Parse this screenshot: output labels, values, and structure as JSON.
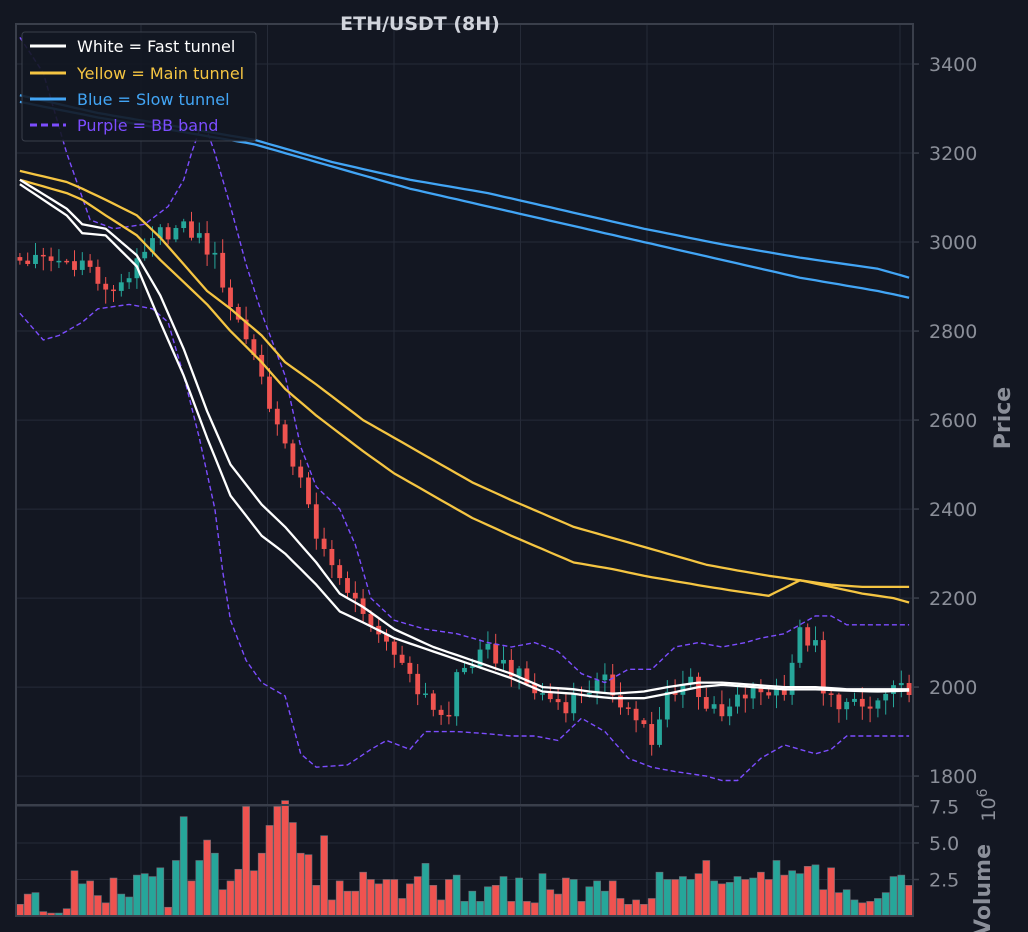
{
  "chart_data": {
    "type": "candlestick",
    "title": "ETH/USDT (8H)",
    "colors": {
      "background": "#131722",
      "grid": "#262b38",
      "axis": "#3a3f4b",
      "tick_text": "#8b8f99",
      "title_text": "#d1d4dc",
      "up": "#26a69a",
      "down": "#ef5350",
      "fast": "#ffffff",
      "main": "#f5c542",
      "slow": "#42a5f5",
      "bb": "#7c4dff"
    },
    "price_panel": {
      "ylabel": "Price",
      "ylim": [
        1735,
        3490
      ],
      "yticks": [
        "1800",
        "2000",
        "2200",
        "2400",
        "2600",
        "2800",
        "3000",
        "3200",
        "3400"
      ],
      "candle_count": 115
    },
    "volume_panel": {
      "ylabel": "Volume",
      "exponent": "6",
      "ylim": [
        0,
        7.6
      ],
      "yticks": [
        "2.5",
        "5.0",
        "7.5"
      ]
    },
    "legend": [
      {
        "label": "White = Fast tunnel",
        "color": "#ffffff",
        "style": "solid"
      },
      {
        "label": "Yellow = Main tunnel",
        "color": "#f5c542",
        "style": "solid"
      },
      {
        "label": "Blue = Slow tunnel",
        "color": "#42a5f5",
        "style": "solid"
      },
      {
        "label": "Purple = BB band",
        "color": "#7c4dff",
        "style": "dashed"
      }
    ],
    "close_anchors": [
      [
        0,
        2960
      ],
      [
        8,
        2955
      ],
      [
        9,
        2940
      ],
      [
        11,
        2880
      ],
      [
        15,
        2945
      ],
      [
        18,
        3020
      ],
      [
        21,
        3030
      ],
      [
        23,
        3010
      ],
      [
        25,
        2960
      ],
      [
        27,
        2860
      ],
      [
        30,
        2750
      ],
      [
        34,
        2530
      ],
      [
        36,
        2480
      ],
      [
        38,
        2320
      ],
      [
        40,
        2290
      ],
      [
        42,
        2200
      ],
      [
        44,
        2180
      ],
      [
        46,
        2100
      ],
      [
        49,
        2060
      ],
      [
        52,
        1970
      ],
      [
        55,
        1930
      ],
      [
        56,
        2030
      ],
      [
        60,
        2080
      ],
      [
        63,
        2040
      ],
      [
        66,
        1990
      ],
      [
        70,
        1960
      ],
      [
        72,
        1990
      ],
      [
        75,
        2010
      ],
      [
        78,
        1950
      ],
      [
        80,
        1910
      ],
      [
        81,
        1860
      ],
      [
        83,
        1985
      ],
      [
        86,
        2020
      ],
      [
        88,
        1960
      ],
      [
        90,
        1930
      ],
      [
        92,
        1970
      ],
      [
        94,
        1990
      ],
      [
        96,
        1990
      ],
      [
        98,
        2000
      ],
      [
        100,
        2120
      ],
      [
        102,
        2090
      ],
      [
        103,
        1980
      ],
      [
        106,
        1960
      ],
      [
        109,
        1950
      ],
      [
        111,
        1980
      ],
      [
        114,
        2000
      ]
    ],
    "fast_upper": [
      [
        0,
        3140
      ],
      [
        6,
        3075
      ],
      [
        8,
        3040
      ],
      [
        11,
        3030
      ],
      [
        15,
        2970
      ],
      [
        18,
        2880
      ],
      [
        21,
        2760
      ],
      [
        24,
        2620
      ],
      [
        27,
        2500
      ],
      [
        31,
        2410
      ],
      [
        34,
        2360
      ],
      [
        38,
        2280
      ],
      [
        41,
        2210
      ],
      [
        44,
        2180
      ],
      [
        48,
        2130
      ],
      [
        53,
        2090
      ],
      [
        58,
        2060
      ],
      [
        63,
        2030
      ],
      [
        67,
        2000
      ],
      [
        71,
        1995
      ],
      [
        73,
        1990
      ],
      [
        76,
        1985
      ],
      [
        80,
        1990
      ],
      [
        83,
        2000
      ],
      [
        87,
        2010
      ],
      [
        90,
        2010
      ],
      [
        94,
        2005
      ],
      [
        98,
        2000
      ],
      [
        102,
        2000
      ],
      [
        106,
        1995
      ],
      [
        110,
        1995
      ],
      [
        114,
        1995
      ]
    ],
    "fast_lower": [
      [
        0,
        3130
      ],
      [
        6,
        3060
      ],
      [
        8,
        3020
      ],
      [
        11,
        3015
      ],
      [
        15,
        2945
      ],
      [
        18,
        2820
      ],
      [
        21,
        2700
      ],
      [
        24,
        2560
      ],
      [
        27,
        2430
      ],
      [
        31,
        2340
      ],
      [
        34,
        2300
      ],
      [
        38,
        2230
      ],
      [
        41,
        2170
      ],
      [
        44,
        2145
      ],
      [
        48,
        2110
      ],
      [
        53,
        2080
      ],
      [
        58,
        2050
      ],
      [
        63,
        2020
      ],
      [
        67,
        1990
      ],
      [
        71,
        1985
      ],
      [
        73,
        1980
      ],
      [
        76,
        1975
      ],
      [
        80,
        1975
      ],
      [
        83,
        1985
      ],
      [
        87,
        2000
      ],
      [
        90,
        2005
      ],
      [
        94,
        2000
      ],
      [
        98,
        1995
      ],
      [
        102,
        1995
      ],
      [
        106,
        1992
      ],
      [
        110,
        1990
      ],
      [
        114,
        1992
      ]
    ],
    "main_upper": [
      [
        0,
        3160
      ],
      [
        6,
        3135
      ],
      [
        8,
        3120
      ],
      [
        11,
        3095
      ],
      [
        15,
        3060
      ],
      [
        18,
        3010
      ],
      [
        21,
        2950
      ],
      [
        24,
        2890
      ],
      [
        27,
        2850
      ],
      [
        31,
        2790
      ],
      [
        34,
        2730
      ],
      [
        38,
        2680
      ],
      [
        41,
        2640
      ],
      [
        44,
        2600
      ],
      [
        48,
        2560
      ],
      [
        53,
        2510
      ],
      [
        58,
        2460
      ],
      [
        63,
        2420
      ],
      [
        67,
        2390
      ],
      [
        71,
        2360
      ],
      [
        76,
        2335
      ],
      [
        80,
        2315
      ],
      [
        84,
        2295
      ],
      [
        88,
        2275
      ],
      [
        92,
        2262
      ],
      [
        96,
        2250
      ],
      [
        100,
        2240
      ],
      [
        104,
        2225
      ],
      [
        108,
        2210
      ],
      [
        112,
        2200
      ],
      [
        114,
        2190
      ]
    ],
    "main_lower": [
      [
        0,
        3140
      ],
      [
        6,
        3110
      ],
      [
        8,
        3095
      ],
      [
        11,
        3060
      ],
      [
        15,
        3015
      ],
      [
        18,
        2960
      ],
      [
        21,
        2910
      ],
      [
        24,
        2860
      ],
      [
        27,
        2800
      ],
      [
        31,
        2730
      ],
      [
        34,
        2670
      ],
      [
        38,
        2610
      ],
      [
        41,
        2570
      ],
      [
        44,
        2530
      ],
      [
        48,
        2480
      ],
      [
        53,
        2430
      ],
      [
        58,
        2380
      ],
      [
        63,
        2340
      ],
      [
        67,
        2310
      ],
      [
        71,
        2280
      ],
      [
        76,
        2265
      ],
      [
        80,
        2250
      ],
      [
        84,
        2238
      ],
      [
        88,
        2226
      ],
      [
        92,
        2215
      ],
      [
        96,
        2205
      ],
      [
        100,
        2240
      ],
      [
        104,
        2230
      ],
      [
        108,
        2225
      ],
      [
        112,
        2225
      ],
      [
        114,
        2225
      ]
    ],
    "slow_upper": [
      [
        0,
        3330
      ],
      [
        10,
        3290
      ],
      [
        20,
        3260
      ],
      [
        30,
        3230
      ],
      [
        40,
        3180
      ],
      [
        50,
        3140
      ],
      [
        60,
        3110
      ],
      [
        70,
        3070
      ],
      [
        80,
        3030
      ],
      [
        90,
        2995
      ],
      [
        100,
        2965
      ],
      [
        110,
        2940
      ],
      [
        114,
        2920
      ]
    ],
    "slow_lower": [
      [
        0,
        3315
      ],
      [
        10,
        3280
      ],
      [
        20,
        3250
      ],
      [
        30,
        3220
      ],
      [
        40,
        3170
      ],
      [
        50,
        3120
      ],
      [
        60,
        3080
      ],
      [
        70,
        3040
      ],
      [
        80,
        3000
      ],
      [
        90,
        2960
      ],
      [
        100,
        2920
      ],
      [
        110,
        2890
      ],
      [
        114,
        2875
      ]
    ],
    "bb_upper": [
      [
        0,
        3460
      ],
      [
        3,
        3380
      ],
      [
        6,
        3200
      ],
      [
        9,
        3050
      ],
      [
        12,
        3030
      ],
      [
        16,
        3040
      ],
      [
        19,
        3080
      ],
      [
        21,
        3140
      ],
      [
        22,
        3200
      ],
      [
        23,
        3250
      ],
      [
        24,
        3250
      ],
      [
        25,
        3200
      ],
      [
        27,
        3080
      ],
      [
        29,
        2950
      ],
      [
        31,
        2840
      ],
      [
        34,
        2700
      ],
      [
        36,
        2540
      ],
      [
        38,
        2450
      ],
      [
        41,
        2400
      ],
      [
        43,
        2320
      ],
      [
        45,
        2200
      ],
      [
        48,
        2150
      ],
      [
        52,
        2130
      ],
      [
        56,
        2120
      ],
      [
        60,
        2100
      ],
      [
        63,
        2090
      ],
      [
        66,
        2100
      ],
      [
        69,
        2080
      ],
      [
        72,
        2030
      ],
      [
        75,
        2010
      ],
      [
        78,
        2040
      ],
      [
        81,
        2040
      ],
      [
        84,
        2090
      ],
      [
        87,
        2100
      ],
      [
        90,
        2090
      ],
      [
        93,
        2100
      ],
      [
        95,
        2110
      ],
      [
        98,
        2120
      ],
      [
        100,
        2140
      ],
      [
        102,
        2160
      ],
      [
        104,
        2160
      ],
      [
        106,
        2140
      ],
      [
        110,
        2140
      ],
      [
        114,
        2140
      ]
    ],
    "bb_lower": [
      [
        0,
        2840
      ],
      [
        3,
        2780
      ],
      [
        5,
        2790
      ],
      [
        8,
        2820
      ],
      [
        10,
        2850
      ],
      [
        14,
        2860
      ],
      [
        17,
        2850
      ],
      [
        19,
        2820
      ],
      [
        21,
        2700
      ],
      [
        23,
        2560
      ],
      [
        25,
        2400
      ],
      [
        26,
        2260
      ],
      [
        27,
        2150
      ],
      [
        29,
        2060
      ],
      [
        31,
        2010
      ],
      [
        34,
        1980
      ],
      [
        36,
        1850
      ],
      [
        38,
        1820
      ],
      [
        42,
        1825
      ],
      [
        45,
        1860
      ],
      [
        47,
        1880
      ],
      [
        50,
        1860
      ],
      [
        52,
        1900
      ],
      [
        56,
        1900
      ],
      [
        60,
        1895
      ],
      [
        63,
        1890
      ],
      [
        66,
        1890
      ],
      [
        69,
        1880
      ],
      [
        72,
        1930
      ],
      [
        75,
        1900
      ],
      [
        78,
        1840
      ],
      [
        81,
        1820
      ],
      [
        84,
        1810
      ],
      [
        88,
        1800
      ],
      [
        90,
        1790
      ],
      [
        92,
        1790
      ],
      [
        95,
        1840
      ],
      [
        98,
        1870
      ],
      [
        100,
        1860
      ],
      [
        102,
        1850
      ],
      [
        104,
        1860
      ],
      [
        106,
        1890
      ],
      [
        110,
        1890
      ],
      [
        114,
        1890
      ]
    ],
    "volumes": [
      0.8,
      1.5,
      1.6,
      0.3,
      0.2,
      0.2,
      0.5,
      3.1,
      2.2,
      2.4,
      1.4,
      0.9,
      2.6,
      1.5,
      1.3,
      2.8,
      2.9,
      2.7,
      3.3,
      0.6,
      3.8,
      6.8,
      2.4,
      3.8,
      5.2,
      4.3,
      1.8,
      2.4,
      3.2,
      7.5,
      3.1,
      4.3,
      6.2,
      7.5,
      7.9,
      6.4,
      4.3,
      4.2,
      2.1,
      5.5,
      1.1,
      2.4,
      1.7,
      1.7,
      3.0,
      2.5,
      2.2,
      2.5,
      2.5,
      1.2,
      2.2,
      2.7,
      3.6,
      2.1,
      1.1,
      2.5,
      2.8,
      1.0,
      1.7,
      1.0,
      2.0,
      2.1,
      2.7,
      1.0,
      2.6,
      1.0,
      0.9,
      2.9,
      1.8,
      1.5,
      2.6,
      2.5,
      1.0,
      2.0,
      2.4,
      1.7,
      2.4,
      1.2,
      0.8,
      1.1,
      0.8,
      1.2,
      3.0,
      2.5,
      2.5,
      2.7,
      2.5,
      2.9,
      3.8,
      2.4,
      2.2,
      2.3,
      2.7,
      2.5,
      2.6,
      3.0,
      2.5,
      3.8,
      2.8,
      3.1,
      2.9,
      3.4,
      3.5,
      1.8,
      3.3,
      1.6,
      1.8,
      1.1,
      0.9,
      1.0,
      1.2,
      1.6,
      2.7,
      2.8,
      2.1
    ]
  }
}
